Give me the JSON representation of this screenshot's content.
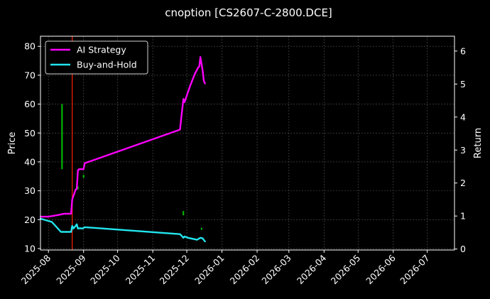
{
  "chart_data": {
    "type": "line",
    "title": "cnoption [CS2607-C-2800.DCE]",
    "ylabel": "Price",
    "y2label": "Return",
    "ylim": [
      9.5,
      83.5
    ],
    "y2lim": [
      -0.03,
      6.45
    ],
    "xlim": [
      "2025-07-25",
      "2026-07-25"
    ],
    "yticks": [
      10,
      20,
      30,
      40,
      50,
      60,
      70,
      80
    ],
    "y2ticks": [
      0,
      1,
      2,
      3,
      4,
      5,
      6
    ],
    "xticks": [
      "2025-08",
      "2025-09",
      "2025-10",
      "2025-11",
      "2025-12",
      "2026-01",
      "2026-02",
      "2026-03",
      "2026-04",
      "2026-05",
      "2026-06",
      "2026-07"
    ],
    "grid": true,
    "legend_position": "top-left",
    "colors": {
      "ai_strategy": "#ff00ff",
      "buy_and_hold": "#22e5ee",
      "price_bars": "#00c000",
      "marker_line": "#ff2200",
      "grid": "#555555",
      "axes": "#ffffff",
      "background": "#000000"
    },
    "marker": {
      "date": "2025-08-22",
      "label": ""
    },
    "series": [
      {
        "name": "AI Strategy",
        "axis": "right",
        "points": [
          [
            "2025-07-25",
            0.98
          ],
          [
            "2025-08-01",
            0.98
          ],
          [
            "2025-08-08",
            1.02
          ],
          [
            "2025-08-15",
            1.07
          ],
          [
            "2025-08-21",
            1.07
          ],
          [
            "2025-08-22",
            1.5
          ],
          [
            "2025-08-25",
            1.8
          ],
          [
            "2025-08-26",
            1.82
          ],
          [
            "2025-08-27",
            2.38
          ],
          [
            "2025-08-28",
            2.42
          ],
          [
            "2025-09-01",
            2.42
          ],
          [
            "2025-09-02",
            2.6
          ],
          [
            "2025-11-25",
            3.62
          ],
          [
            "2025-11-26",
            3.95
          ],
          [
            "2025-11-28",
            4.55
          ],
          [
            "2025-11-29",
            4.45
          ],
          [
            "2025-12-02",
            4.75
          ],
          [
            "2025-12-04",
            4.95
          ],
          [
            "2025-12-08",
            5.3
          ],
          [
            "2025-12-11",
            5.5
          ],
          [
            "2025-12-12",
            5.53
          ],
          [
            "2025-12-13",
            5.82
          ],
          [
            "2025-12-15",
            5.4
          ],
          [
            "2025-12-16",
            5.1
          ],
          [
            "2025-12-17",
            5.02
          ]
        ]
      },
      {
        "name": "Buy-and-Hold",
        "axis": "right",
        "points": [
          [
            "2025-07-25",
            0.92
          ],
          [
            "2025-08-04",
            0.82
          ],
          [
            "2025-08-12",
            0.52
          ],
          [
            "2025-08-21",
            0.52
          ],
          [
            "2025-08-22",
            0.7
          ],
          [
            "2025-08-23",
            0.62
          ],
          [
            "2025-08-25",
            0.7
          ],
          [
            "2025-08-26",
            0.75
          ],
          [
            "2025-08-27",
            0.62
          ],
          [
            "2025-08-29",
            0.63
          ],
          [
            "2025-08-31",
            0.62
          ],
          [
            "2025-09-02",
            0.66
          ],
          [
            "2025-11-25",
            0.45
          ],
          [
            "2025-11-28",
            0.34
          ],
          [
            "2025-11-29",
            0.38
          ],
          [
            "2025-12-02",
            0.34
          ],
          [
            "2025-12-10",
            0.28
          ],
          [
            "2025-12-13",
            0.34
          ],
          [
            "2025-12-15",
            0.32
          ],
          [
            "2025-12-17",
            0.23
          ]
        ]
      }
    ],
    "price_bars": [
      {
        "date": "2025-08-13",
        "low": 37.5,
        "high": 60.0
      },
      {
        "date": "2025-08-27",
        "low": 30.5,
        "high": 31.5
      },
      {
        "date": "2025-09-01",
        "low": 34.5,
        "high": 35.5
      },
      {
        "date": "2025-11-28",
        "low": 21.5,
        "high": 23.0
      },
      {
        "date": "2025-12-14",
        "low": 16.5,
        "high": 17.2
      }
    ]
  }
}
